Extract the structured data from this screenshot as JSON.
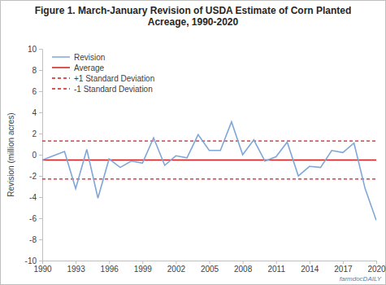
{
  "chart_data": {
    "type": "line",
    "title": "Figure 1. March-January Revision of USDA Estimate of Corn Planted Acreage, 1990-2020",
    "y_label": "Revision (million acres)",
    "annotations": [
      "farmdocDAILY"
    ],
    "x": [
      1990,
      1991,
      1992,
      1993,
      1994,
      1995,
      1996,
      1997,
      1998,
      1999,
      2000,
      2001,
      2002,
      2003,
      2004,
      2005,
      2006,
      2007,
      2008,
      2009,
      2010,
      2011,
      2012,
      2013,
      2014,
      2015,
      2016,
      2017,
      2018,
      2019,
      2020
    ],
    "series": [
      {
        "name": "Revision",
        "color": "#7ea7d8",
        "line_style": "solid",
        "values": [
          -0.5,
          -0.1,
          0.3,
          -3.2,
          0.5,
          -4.1,
          -0.4,
          -1.2,
          -0.6,
          -0.8,
          1.6,
          -1.0,
          -0.1,
          -0.3,
          1.9,
          0.4,
          0.4,
          3.1,
          0.0,
          1.4,
          -0.6,
          -0.2,
          1.2,
          -2.0,
          -1.1,
          -1.2,
          0.4,
          0.2,
          1.1,
          -3.2,
          -6.2
        ]
      },
      {
        "name": "Average",
        "color": "#d01c1c",
        "line_style": "solid",
        "values": [
          -0.5,
          -0.5,
          -0.5,
          -0.5,
          -0.5,
          -0.5,
          -0.5,
          -0.5,
          -0.5,
          -0.5,
          -0.5,
          -0.5,
          -0.5,
          -0.5,
          -0.5,
          -0.5,
          -0.5,
          -0.5,
          -0.5,
          -0.5,
          -0.5,
          -0.5,
          -0.5,
          -0.5,
          -0.5,
          -0.5,
          -0.5,
          -0.5,
          -0.5,
          -0.5,
          -0.5
        ]
      },
      {
        "name": "+1 Standard Deviation",
        "color": "#d01c1c",
        "line_style": "dashed",
        "values": [
          1.3,
          1.3,
          1.3,
          1.3,
          1.3,
          1.3,
          1.3,
          1.3,
          1.3,
          1.3,
          1.3,
          1.3,
          1.3,
          1.3,
          1.3,
          1.3,
          1.3,
          1.3,
          1.3,
          1.3,
          1.3,
          1.3,
          1.3,
          1.3,
          1.3,
          1.3,
          1.3,
          1.3,
          1.3,
          1.3,
          1.3
        ]
      },
      {
        "name": "-1 Standard Deviation",
        "color": "#d01c1c",
        "line_style": "dashed",
        "values": [
          -2.3,
          -2.3,
          -2.3,
          -2.3,
          -2.3,
          -2.3,
          -2.3,
          -2.3,
          -2.3,
          -2.3,
          -2.3,
          -2.3,
          -2.3,
          -2.3,
          -2.3,
          -2.3,
          -2.3,
          -2.3,
          -2.3,
          -2.3,
          -2.3,
          -2.3,
          -2.3,
          -2.3,
          -2.3,
          -2.3,
          -2.3,
          -2.3,
          -2.3,
          -2.3,
          -2.3
        ]
      }
    ],
    "xlim": [
      1990,
      2020
    ],
    "xticks": [
      1990,
      1993,
      1996,
      1999,
      2002,
      2005,
      2008,
      2011,
      2014,
      2017,
      2020
    ],
    "ylim": [
      -10,
      10
    ],
    "yticks": [
      -10,
      -8,
      -6,
      -4,
      -2,
      0,
      2,
      4,
      6,
      8,
      10
    ],
    "grid": false,
    "legend": "upper left"
  }
}
